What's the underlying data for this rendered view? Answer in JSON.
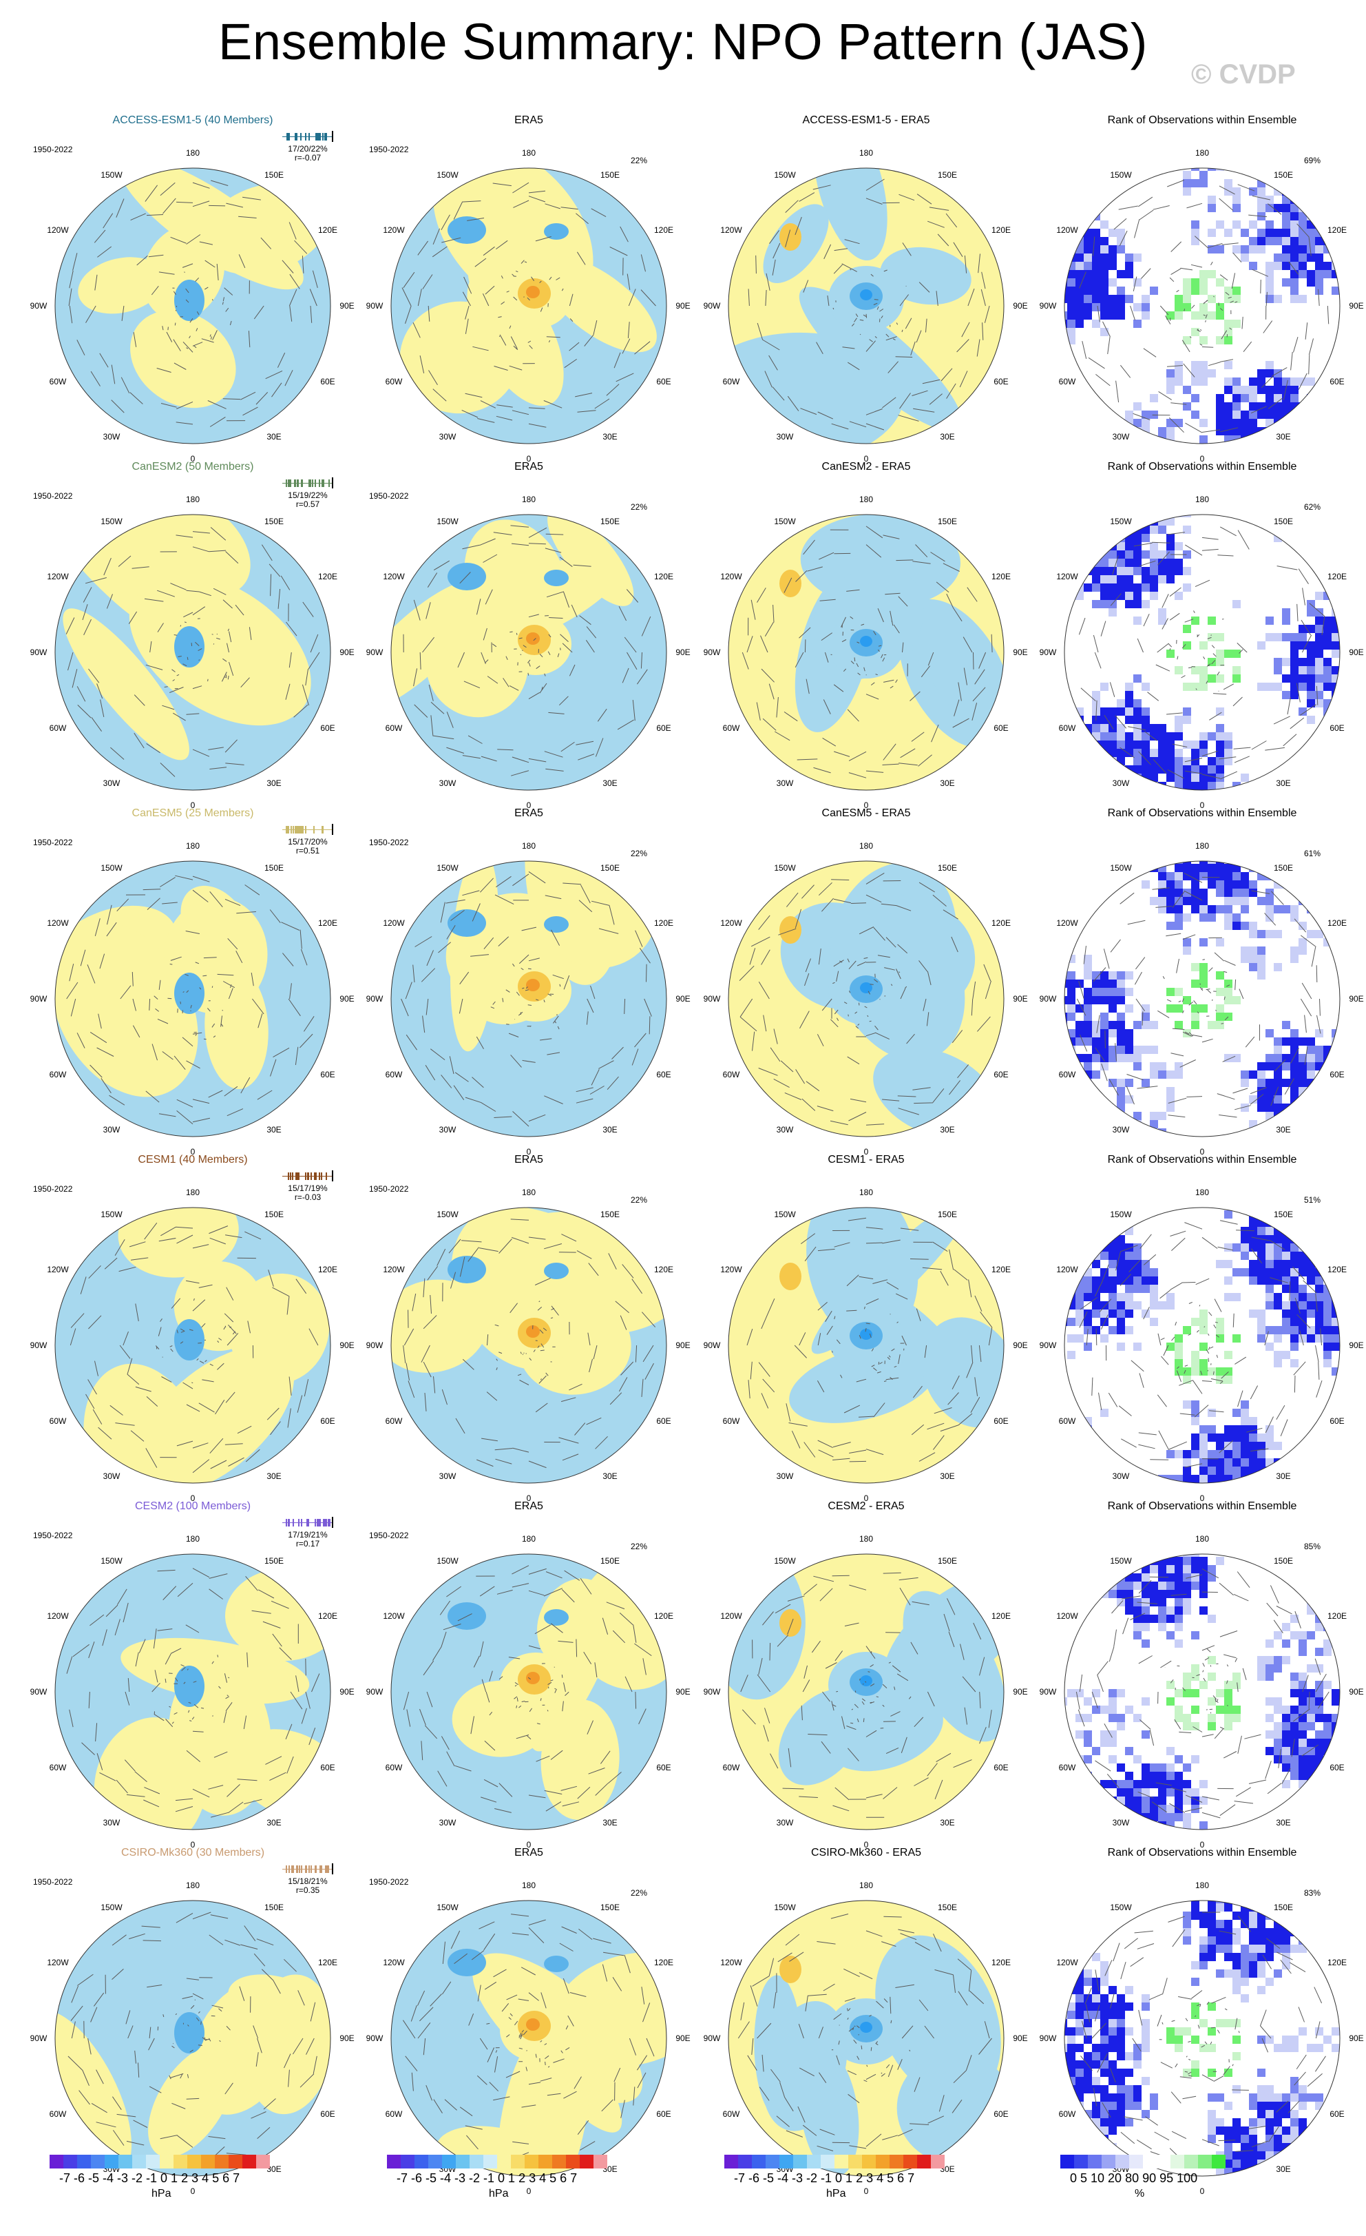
{
  "title": "Ensemble Summary: NPO Pattern (JAS)",
  "watermark": "© CVDP",
  "colors": {
    "neg": "#a7d8ee",
    "pos": "#fbf5a1",
    "neg_strong": "#5cb3ea",
    "neg_strongest": "#2a9cf0",
    "pos_strong": "#f6c84a",
    "pos_strongest": "#f29a2a",
    "rank_blue": "#1a1fe6",
    "rank_mid": "#7a86f0",
    "rank_light": "#c9cff7",
    "rank_green": "#6ef06e",
    "rank_green_light": "#c8f4c8"
  },
  "map_labels": {
    "top": "180",
    "bottom": "0",
    "left": "90W",
    "right": "90E",
    "ul_outer": "150W",
    "ur_outer": "150E",
    "ul_inner": "120W",
    "ur_inner": "120E",
    "ll_inner": "60W",
    "lr_inner": "60E",
    "ll_outer": "30W",
    "lr_outer": "30E"
  },
  "rows": [
    {
      "model": "ACCESS-ESM1-5 (40 Members)",
      "model_color": "#1f6e8c",
      "years": "1950-2022",
      "stats": "17/20/22%",
      "r": "r=-0.07",
      "era5_title": "ERA5",
      "era5_years": "1950-2022",
      "era5_pct": "22%",
      "diff_title": "ACCESS-ESM1-5 - ERA5",
      "rank_title": "Rank of Observations within Ensemble",
      "rank_pct": "69%"
    },
    {
      "model": "CanESM2 (50 Members)",
      "model_color": "#5f8a5a",
      "years": "1950-2022",
      "stats": "15/19/22%",
      "r": "r=0.57",
      "era5_title": "ERA5",
      "era5_years": "1950-2022",
      "era5_pct": "22%",
      "diff_title": "CanESM2 - ERA5",
      "rank_title": "Rank of Observations within Ensemble",
      "rank_pct": "62%"
    },
    {
      "model": "CanESM5 (25 Members)",
      "model_color": "#c9b96a",
      "years": "1950-2022",
      "stats": "15/17/20%",
      "r": "r=0.51",
      "era5_title": "ERA5",
      "era5_years": "1950-2022",
      "era5_pct": "22%",
      "diff_title": "CanESM5 - ERA5",
      "rank_title": "Rank of Observations within Ensemble",
      "rank_pct": "61%"
    },
    {
      "model": "CESM1 (40 Members)",
      "model_color": "#8a4a1c",
      "years": "1950-2022",
      "stats": "15/17/19%",
      "r": "r=-0.03",
      "era5_title": "ERA5",
      "era5_years": "1950-2022",
      "era5_pct": "22%",
      "diff_title": "CESM1 - ERA5",
      "rank_title": "Rank of Observations within Ensemble",
      "rank_pct": "51%"
    },
    {
      "model": "CESM2 (100 Members)",
      "model_color": "#7b5cd6",
      "years": "1950-2022",
      "stats": "17/19/21%",
      "r": "r=0.17",
      "era5_title": "ERA5",
      "era5_years": "1950-2022",
      "era5_pct": "22%",
      "diff_title": "CESM2 - ERA5",
      "rank_title": "Rank of Observations within Ensemble",
      "rank_pct": "85%"
    },
    {
      "model": "CSIRO-Mk360 (30 Members)",
      "model_color": "#c89a70",
      "years": "1950-2022",
      "stats": "15/18/21%",
      "r": "r=0.35",
      "era5_title": "ERA5",
      "era5_years": "1950-2022",
      "era5_pct": "22%",
      "diff_title": "CSIRO-Mk360 - ERA5",
      "rank_title": "Rank of Observations within Ensemble",
      "rank_pct": "83%"
    }
  ],
  "hpa_colorbar": {
    "colors": [
      "#6a1fd6",
      "#4a3ee6",
      "#3c62ee",
      "#4d86f2",
      "#3fa6f2",
      "#6cc4f0",
      "#a9ddf5",
      "#cfecf8",
      "#fbf5a1",
      "#f8dc68",
      "#f6c23e",
      "#f3a12a",
      "#ef7a22",
      "#ea4c1a",
      "#e01c1c",
      "#f39aa0"
    ],
    "ticks": "-7 -6 -5 -4 -3 -2 -1 0  1  2  3  4  5  6  7",
    "unit": "hPa"
  },
  "rank_colorbar": {
    "colors": [
      "#1a1fe6",
      "#3a46ec",
      "#6a76f0",
      "#9aa4f4",
      "#c8cef8",
      "#e6e9fb",
      "#ffffff",
      "#ffffff",
      "#e2f8e2",
      "#b8f2b8",
      "#84ee84",
      "#3ee83e"
    ],
    "ticks": "0   5  10    20   80   90  95 100",
    "unit": "%"
  }
}
